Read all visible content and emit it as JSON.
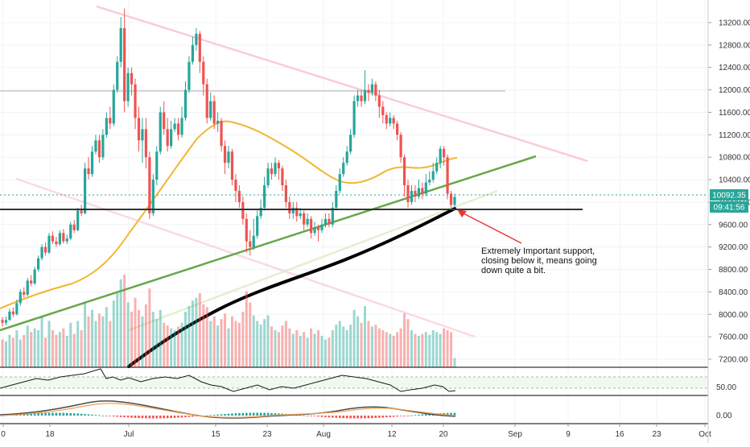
{
  "chart_data": {
    "type": "candlestick",
    "x_axis": {
      "ticks": [
        "0",
        "18",
        "Jul",
        "15",
        "23",
        "Aug",
        "12",
        "20",
        "Sep",
        "9",
        "16",
        "23",
        "Oct"
      ]
    },
    "y_axis": {
      "range": [
        7000,
        13500
      ],
      "ticks": [
        "13200.00",
        "12800.00",
        "12400.00",
        "12000.00",
        "11600.00",
        "11200.00",
        "10800.00",
        "10400.00",
        "10000.00",
        "9600.00",
        "9200.00",
        "8800.00",
        "8400.00",
        "8000.00",
        "7600.00",
        "7200.00"
      ]
    },
    "price_label": "10092.35",
    "countdown_label": "09:41:56",
    "annotation": "Extremely Important support, closing below it, means going down quite a bit.",
    "annotation_lines": [
      "Extremely Important support,",
      "closing below it, means going",
      "down quite a bit."
    ],
    "rsi_level_label": "50.00",
    "macd_level_label": "0.00",
    "candles": [
      [
        7900,
        7850,
        7950,
        7780
      ],
      [
        7850,
        7900,
        7960,
        7800
      ],
      [
        7900,
        8050,
        8100,
        7880
      ],
      [
        8050,
        8000,
        8120,
        7950
      ],
      [
        8000,
        8200,
        8260,
        7980
      ],
      [
        8200,
        8400,
        8450,
        8150
      ],
      [
        8400,
        8350,
        8480,
        8300
      ],
      [
        8350,
        8600,
        8650,
        8320
      ],
      [
        8600,
        8550,
        8700,
        8500
      ],
      [
        8550,
        8800,
        8850,
        8520
      ],
      [
        8800,
        9000,
        9050,
        8760
      ],
      [
        9000,
        9200,
        9250,
        8960
      ],
      [
        9200,
        9100,
        9280,
        9050
      ],
      [
        9100,
        9400,
        9450,
        9080
      ],
      [
        9400,
        9300,
        9480,
        9250
      ],
      [
        9300,
        9250,
        9380,
        9200
      ],
      [
        9250,
        9450,
        9500,
        9220
      ],
      [
        9450,
        9300,
        9520,
        9260
      ],
      [
        9300,
        9350,
        9420,
        9250
      ],
      [
        9350,
        9600,
        9650,
        9320
      ],
      [
        9600,
        9500,
        9680,
        9450
      ],
      [
        9500,
        9850,
        9900,
        9480
      ],
      [
        9850,
        9800,
        9950,
        9750
      ],
      [
        9800,
        10600,
        10700,
        9780
      ],
      [
        10600,
        10500,
        10800,
        10400
      ],
      [
        10500,
        10900,
        11000,
        10450
      ],
      [
        10900,
        11100,
        11200,
        10850
      ],
      [
        11100,
        10800,
        11200,
        10700
      ],
      [
        10800,
        11200,
        11300,
        10750
      ],
      [
        11200,
        11500,
        11600,
        11150
      ],
      [
        11500,
        11400,
        11700,
        11300
      ],
      [
        11400,
        12000,
        12100,
        11350
      ],
      [
        12000,
        12500,
        12600,
        11950
      ],
      [
        12500,
        13100,
        13300,
        12400
      ],
      [
        13100,
        11800,
        13450,
        11600
      ],
      [
        11800,
        12300,
        12400,
        11700
      ],
      [
        12300,
        12100,
        12400,
        11900
      ],
      [
        12100,
        11500,
        12200,
        11300
      ],
      [
        11500,
        11100,
        11700,
        10900
      ],
      [
        11100,
        11300,
        11500,
        10700
      ],
      [
        11300,
        10800,
        11500,
        10600
      ],
      [
        10800,
        9800,
        10900,
        9700
      ],
      [
        9800,
        10400,
        10500,
        9750
      ],
      [
        10400,
        10900,
        11000,
        10300
      ],
      [
        10900,
        11600,
        11700,
        10850
      ],
      [
        11600,
        11300,
        11800,
        11200
      ],
      [
        11300,
        11000,
        11500,
        10900
      ],
      [
        11000,
        11300,
        11450,
        10950
      ],
      [
        11300,
        11400,
        11500,
        11250
      ],
      [
        11400,
        11200,
        11500,
        11100
      ],
      [
        11200,
        11500,
        11700,
        11150
      ],
      [
        11500,
        12000,
        12150,
        11450
      ],
      [
        12000,
        12500,
        12600,
        11950
      ],
      [
        12500,
        12800,
        12950,
        12450
      ],
      [
        12800,
        13000,
        13100,
        12700
      ],
      [
        13000,
        12500,
        13050,
        12300
      ],
      [
        12500,
        12100,
        12600,
        11900
      ],
      [
        12100,
        11500,
        12200,
        11400
      ],
      [
        11500,
        11800,
        11950,
        11450
      ],
      [
        11800,
        11400,
        11900,
        11300
      ],
      [
        11400,
        11450,
        11600,
        11250
      ],
      [
        11450,
        11000,
        11500,
        10900
      ],
      [
        11000,
        10700,
        11100,
        10500
      ],
      [
        10700,
        10900,
        11000,
        10600
      ],
      [
        10900,
        10400,
        10950,
        10300
      ],
      [
        10400,
        10200,
        10500,
        10000
      ],
      [
        10200,
        10000,
        10300,
        9900
      ],
      [
        10000,
        9700,
        10100,
        9600
      ],
      [
        9700,
        9300,
        9800,
        9100
      ],
      [
        9300,
        9200,
        9500,
        9050
      ],
      [
        9200,
        9400,
        9700,
        9150
      ],
      [
        9400,
        9750,
        9850,
        9350
      ],
      [
        9750,
        9900,
        10050,
        9700
      ],
      [
        9900,
        10300,
        10450,
        9850
      ],
      [
        10300,
        10600,
        10700,
        10250
      ],
      [
        10600,
        10500,
        10700,
        10400
      ],
      [
        10500,
        10700,
        10800,
        10450
      ],
      [
        10700,
        10600,
        10750,
        10400
      ],
      [
        10600,
        10300,
        10650,
        10200
      ],
      [
        10300,
        10000,
        10400,
        9900
      ],
      [
        10000,
        9800,
        10100,
        9700
      ],
      [
        9800,
        9900,
        10000,
        9700
      ],
      [
        9900,
        9750,
        10000,
        9650
      ],
      [
        9750,
        9800,
        9900,
        9700
      ],
      [
        9800,
        9600,
        9850,
        9500
      ],
      [
        9600,
        9700,
        9800,
        9550
      ],
      [
        9700,
        9450,
        9750,
        9350
      ],
      [
        9450,
        9550,
        9650,
        9400
      ],
      [
        9550,
        9500,
        9600,
        9300
      ],
      [
        9500,
        9600,
        9700,
        9450
      ],
      [
        9600,
        9700,
        9800,
        9550
      ],
      [
        9700,
        9600,
        9800,
        9550
      ],
      [
        9600,
        9900,
        10000,
        9550
      ],
      [
        9900,
        10200,
        10300,
        9850
      ],
      [
        10200,
        10500,
        10600,
        10150
      ],
      [
        10500,
        10700,
        10800,
        10450
      ],
      [
        10700,
        10900,
        11000,
        10650
      ],
      [
        10900,
        11200,
        11300,
        10850
      ],
      [
        11200,
        11800,
        11900,
        11150
      ],
      [
        11800,
        11900,
        12000,
        11700
      ],
      [
        11900,
        11800,
        12000,
        11700
      ],
      [
        11800,
        12000,
        12350,
        11750
      ],
      [
        12000,
        11950,
        12100,
        11800
      ],
      [
        11950,
        12100,
        12200,
        11900
      ],
      [
        12100,
        11900,
        12150,
        11800
      ],
      [
        11900,
        11700,
        12000,
        11500
      ],
      [
        11700,
        11550,
        11800,
        11400
      ],
      [
        11550,
        11400,
        11600,
        11300
      ],
      [
        11400,
        11500,
        11600,
        11350
      ],
      [
        11500,
        11400,
        11550,
        11300
      ],
      [
        11400,
        11200,
        11450,
        11100
      ],
      [
        11200,
        10800,
        11250,
        10700
      ],
      [
        10800,
        10300,
        10850,
        10100
      ],
      [
        10300,
        10000,
        10400,
        9900
      ],
      [
        10000,
        10200,
        10300,
        9950
      ],
      [
        10200,
        10100,
        10300,
        10000
      ],
      [
        10100,
        10250,
        10400,
        10050
      ],
      [
        10250,
        10150,
        10350,
        10050
      ],
      [
        10150,
        10350,
        10500,
        10100
      ],
      [
        10350,
        10400,
        10550,
        10300
      ],
      [
        10400,
        10550,
        10700,
        10350
      ],
      [
        10550,
        10700,
        10800,
        10500
      ],
      [
        10700,
        10950,
        11000,
        10600
      ],
      [
        10950,
        10800,
        11000,
        10650
      ],
      [
        10800,
        10150,
        10850,
        10050
      ],
      [
        10150,
        9950,
        10200,
        9900
      ],
      [
        9950,
        10092,
        10150,
        9900
      ]
    ],
    "volumes": [
      0.3,
      0.28,
      0.35,
      0.32,
      0.4,
      0.3,
      0.35,
      0.45,
      0.38,
      0.42,
      0.4,
      0.55,
      0.32,
      0.5,
      0.4,
      0.35,
      0.38,
      0.42,
      0.34,
      0.48,
      0.36,
      0.5,
      0.4,
      0.7,
      0.55,
      0.62,
      0.5,
      0.58,
      0.55,
      0.65,
      0.5,
      0.72,
      0.8,
      0.95,
      1.0,
      0.7,
      0.6,
      0.75,
      0.62,
      0.55,
      0.68,
      0.85,
      0.6,
      0.52,
      0.62,
      0.48,
      0.45,
      0.42,
      0.4,
      0.44,
      0.48,
      0.6,
      0.66,
      0.72,
      0.75,
      0.8,
      0.68,
      0.65,
      0.5,
      0.55,
      0.45,
      0.52,
      0.58,
      0.42,
      0.55,
      0.5,
      0.48,
      0.6,
      0.82,
      0.7,
      0.56,
      0.5,
      0.46,
      0.52,
      0.56,
      0.44,
      0.4,
      0.38,
      0.45,
      0.5,
      0.42,
      0.36,
      0.4,
      0.34,
      0.38,
      0.32,
      0.42,
      0.36,
      0.4,
      0.34,
      0.3,
      0.32,
      0.4,
      0.46,
      0.5,
      0.44,
      0.4,
      0.46,
      0.62,
      0.55,
      0.48,
      0.66,
      0.5,
      0.44,
      0.46,
      0.42,
      0.4,
      0.38,
      0.36,
      0.34,
      0.38,
      0.42,
      0.58,
      0.52,
      0.4,
      0.36,
      0.34,
      0.36,
      0.38,
      0.35,
      0.4,
      0.38,
      0.36,
      0.42,
      0.4,
      0.38,
      0.1
    ]
  }
}
